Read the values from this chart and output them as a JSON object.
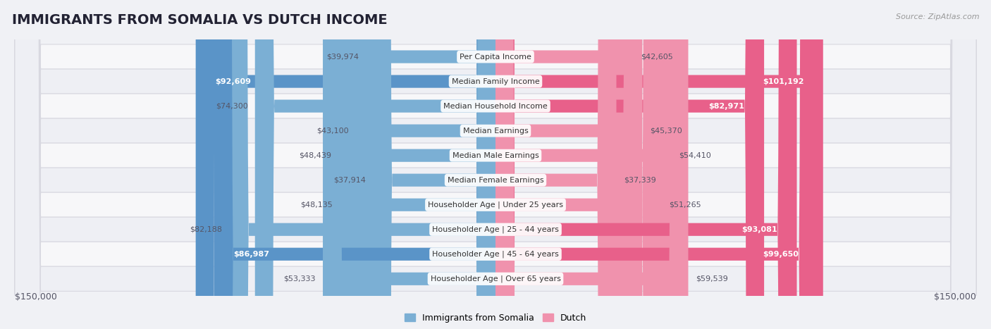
{
  "title": "IMMIGRANTS FROM SOMALIA VS DUTCH INCOME",
  "source": "Source: ZipAtlas.com",
  "categories": [
    "Per Capita Income",
    "Median Family Income",
    "Median Household Income",
    "Median Earnings",
    "Median Male Earnings",
    "Median Female Earnings",
    "Householder Age | Under 25 years",
    "Householder Age | 25 - 44 years",
    "Householder Age | 45 - 64 years",
    "Householder Age | Over 65 years"
  ],
  "somalia_values": [
    39974,
    92609,
    74300,
    43100,
    48439,
    37914,
    48135,
    82188,
    86987,
    53333
  ],
  "dutch_values": [
    42605,
    101192,
    82971,
    45370,
    54410,
    37339,
    51265,
    93081,
    99650,
    59539
  ],
  "somalia_labels": [
    "$39,974",
    "$92,609",
    "$74,300",
    "$43,100",
    "$48,439",
    "$37,914",
    "$48,135",
    "$82,188",
    "$86,987",
    "$53,333"
  ],
  "dutch_labels": [
    "$42,605",
    "$101,192",
    "$82,971",
    "$45,370",
    "$54,410",
    "$37,339",
    "$51,265",
    "$93,081",
    "$99,650",
    "$59,539"
  ],
  "somalia_color_light": "#adc8e8",
  "somalia_color_mid": "#7bafd4",
  "somalia_color_dark": "#5a94c8",
  "dutch_color_light": "#f5b8ca",
  "dutch_color_mid": "#f092ad",
  "dutch_color_dark": "#e8608a",
  "row_colors": [
    "#f7f7f9",
    "#eeeff4"
  ],
  "max_val": 150000,
  "bg_color": "#f0f1f5",
  "axis_label_left": "$150,000",
  "axis_label_right": "$150,000",
  "legend_somalia": "Immigrants from Somalia",
  "legend_dutch": "Dutch",
  "title_fontsize": 14,
  "source_fontsize": 8,
  "cat_fontsize": 8,
  "val_fontsize": 8
}
